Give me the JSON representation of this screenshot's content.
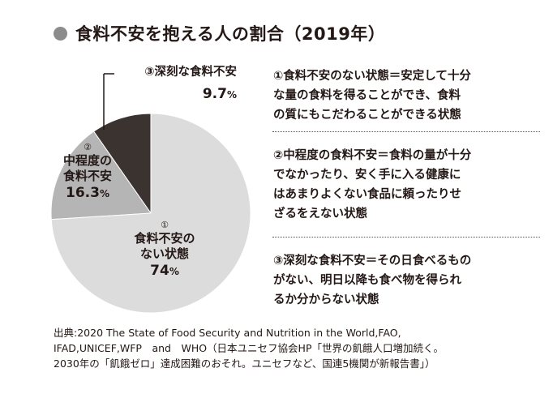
{
  "title": "食料不安を抱える人の割合（2019年）",
  "chart_data": {
    "type": "pie",
    "title": "食料不安を抱える人の割合（2019年）",
    "slices": [
      {
        "number": "①",
        "label_lines": [
          "食料不安の",
          "ない状態"
        ],
        "value": 74,
        "display": "74",
        "color": "#dcdcdc"
      },
      {
        "number": "②",
        "label_lines": [
          "中程度の",
          "食料不安"
        ],
        "value": 16.3,
        "display": "16.3",
        "color": "#b5b5b5"
      },
      {
        "number": "③",
        "label": "③深刻な食料不安",
        "value": 9.7,
        "display": "9.7",
        "color": "#3a3330"
      }
    ],
    "unit": "%"
  },
  "descriptions": [
    {
      "lines": [
        "①食料不安のない状態＝安定して十分",
        "な量の食料を得ることができ、食料",
        "の質にもこだわることができる状態"
      ]
    },
    {
      "lines": [
        "②中程度の食料不安＝食料の量が十分",
        "でなかったり、安く手に入る健康に",
        "はあまりよくない食品に頼ったりせ",
        "ざるをえない状態"
      ]
    },
    {
      "lines": [
        "③深刻な食料不安＝その日食べるもの",
        "がない、明日以降も食べ物を得られ",
        "るか分からない状態"
      ]
    }
  ],
  "source": {
    "lines": [
      "出典:2020 The State of Food Security and Nutrition in the World,FAO,",
      "IFAD,UNICEF,WFP　and　WHO（日本ユニセフ協会HP「世界の飢餓人口増加続く。",
      "2030年の「飢餓ゼロ」達成困難のおそれ。ユニセフなど、国連5機関が新報告書」）"
    ]
  }
}
